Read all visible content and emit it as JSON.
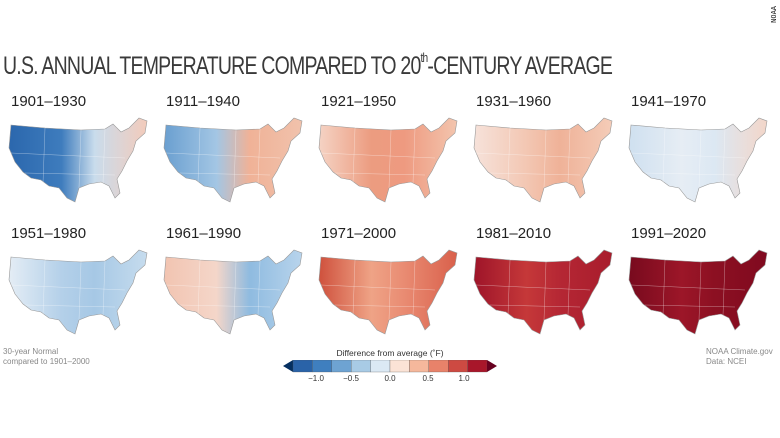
{
  "credit": "NOAA",
  "title": {
    "main": "U.S. ANNUAL TEMPERATURE COMPARED TO 20",
    "sup": "th",
    "rest": "-CENTURY AVERAGE"
  },
  "periods": [
    {
      "label": "1901–1930",
      "colors": [
        "#2b67ad",
        "#3e7cbd",
        "#c9dcec",
        "#f3cbbb"
      ]
    },
    {
      "label": "1911–1940",
      "colors": [
        "#6a9fd0",
        "#a3c6e4",
        "#f0b297",
        "#f1c2ac"
      ]
    },
    {
      "label": "1921–1950",
      "colors": [
        "#f5d3c4",
        "#ec9c80",
        "#ee9a80",
        "#f3c5ae"
      ]
    },
    {
      "label": "1931–1960",
      "colors": [
        "#f6e2da",
        "#f3c7b3",
        "#efb298",
        "#f4ccb8"
      ]
    },
    {
      "label": "1941–1970",
      "colors": [
        "#cfe0f0",
        "#e6edf4",
        "#dce8f3",
        "#f3d6c9"
      ]
    },
    {
      "label": "1951–1980",
      "colors": [
        "#e4edf5",
        "#b4d0e9",
        "#a6c8e5",
        "#c6dcee"
      ]
    },
    {
      "label": "1961–1990",
      "colors": [
        "#f2c4b1",
        "#f4d6c9",
        "#8fbbe0",
        "#b8d4ec"
      ]
    },
    {
      "label": "1971–2000",
      "colors": [
        "#cf513d",
        "#efa386",
        "#e98b72",
        "#d9604b"
      ]
    },
    {
      "label": "1981–2010",
      "colors": [
        "#9e1429",
        "#c53839",
        "#b52734",
        "#a81c2c"
      ]
    },
    {
      "label": "1991–2020",
      "colors": [
        "#780a1e",
        "#9c1628",
        "#8c1022",
        "#80091f"
      ]
    }
  ],
  "notes": {
    "left_1": "30-year Normal",
    "left_2": "compared to 1901–2000",
    "right_1": "NOAA Climate.gov",
    "right_2": "Data: NCEI"
  },
  "legend": {
    "title": "Difference from average (˚F)",
    "ticks": [
      "−1.0",
      "−0.5",
      "0.0",
      "0.5",
      "1.0"
    ],
    "colors": [
      "#2a63a8",
      "#3f7fbf",
      "#6ea3d2",
      "#a8cbe5",
      "#dbe9f4",
      "#fbe3d6",
      "#f5b89c",
      "#e8826a",
      "#cd4a42",
      "#a8162a"
    ],
    "low_color": "#053061",
    "high_color": "#67001f"
  }
}
